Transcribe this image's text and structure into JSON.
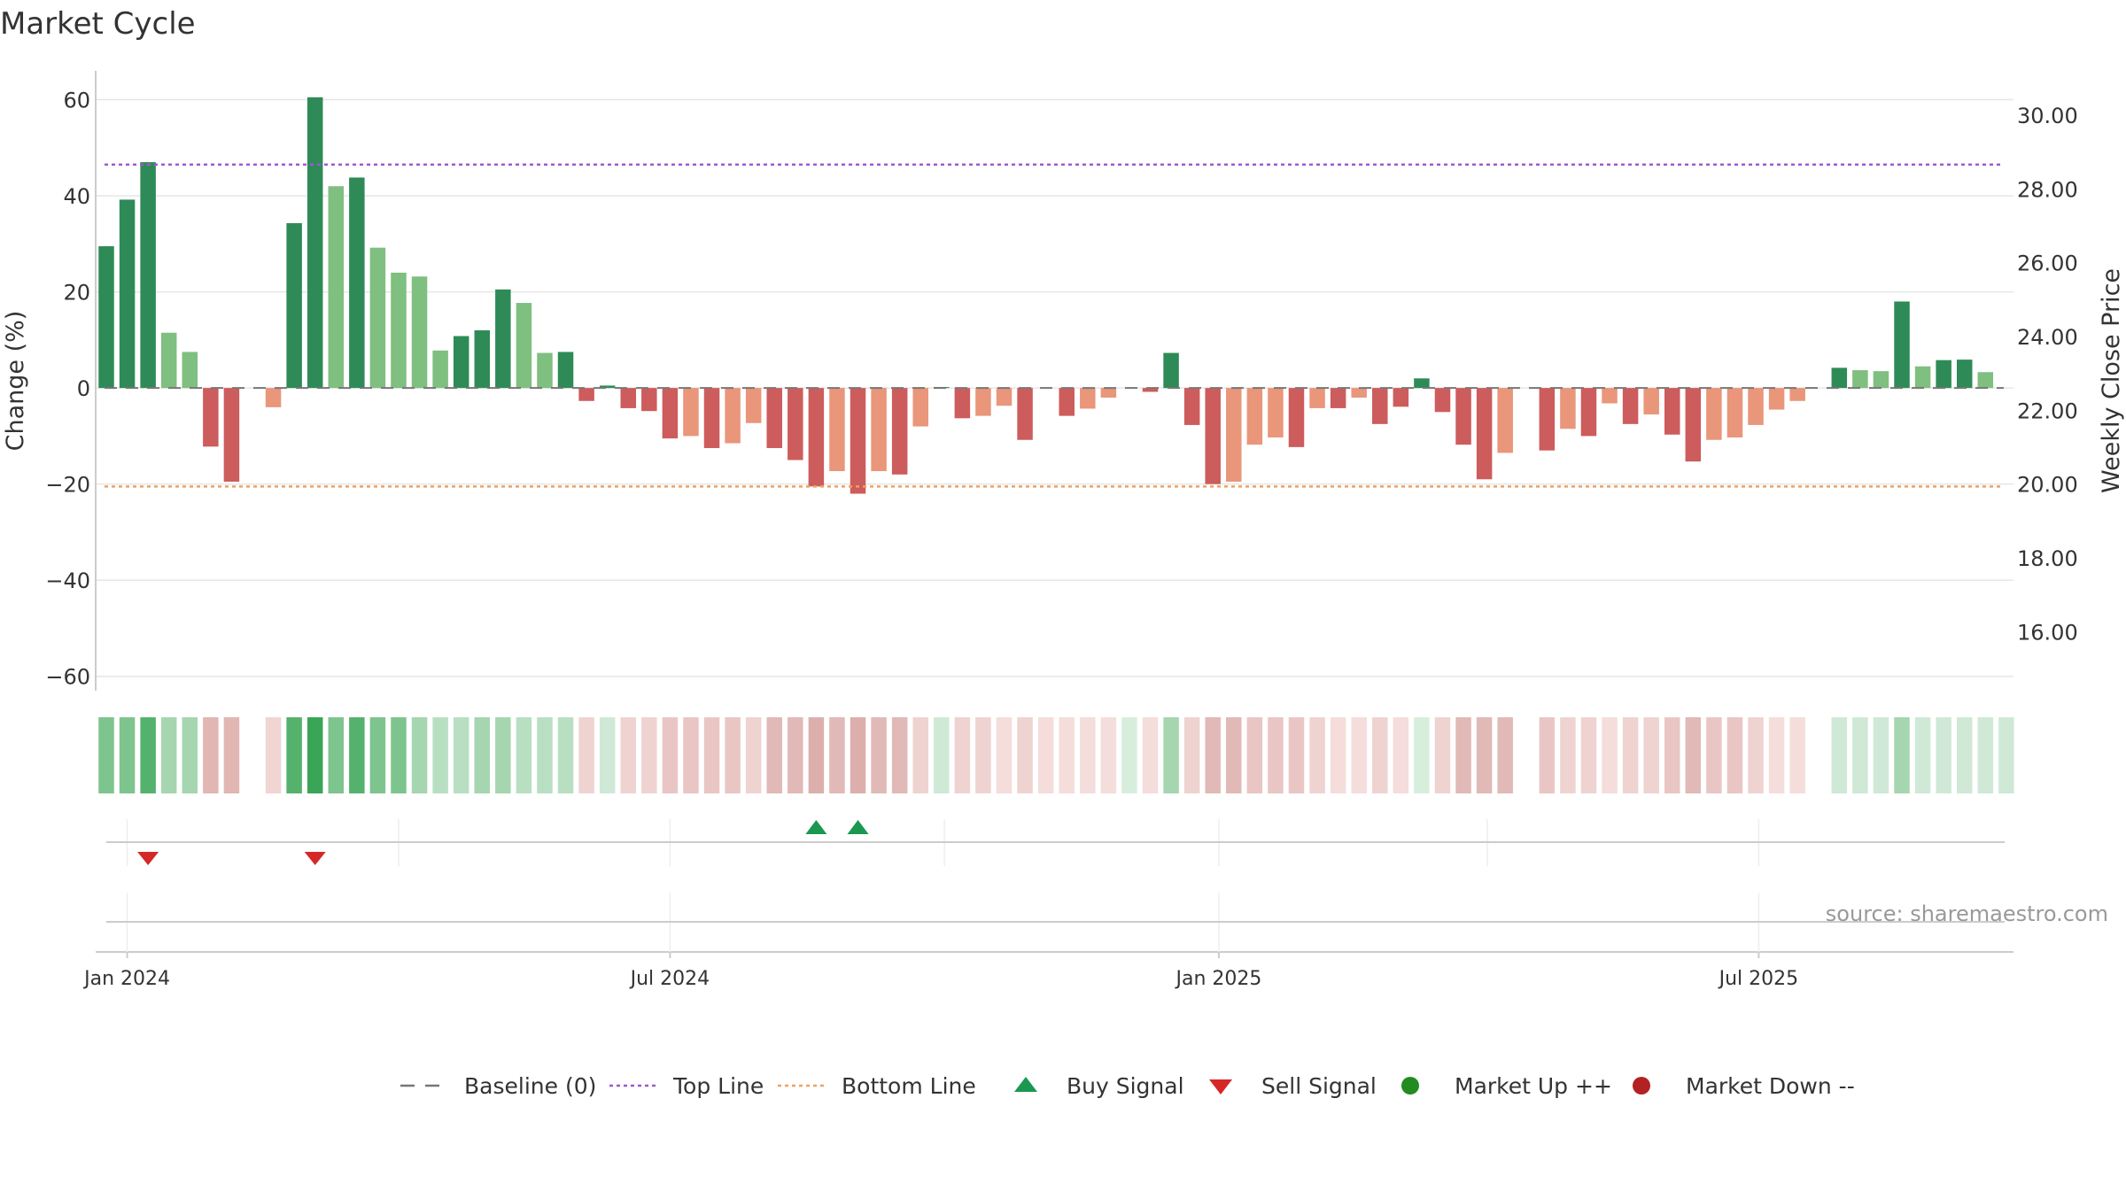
{
  "chart_data": {
    "type": "bar",
    "title": "Market Cycle",
    "ylabel": "Change (%)",
    "y2label": "Weekly Close Price",
    "ylim": [
      -63,
      66
    ],
    "y2lim": [
      14.4,
      31.2
    ],
    "yticks": [
      60,
      40,
      20,
      0,
      -20,
      -40,
      -60
    ],
    "ytick_labels": [
      "60",
      "40",
      "20",
      "0",
      "−20",
      "−40",
      "−60"
    ],
    "y2ticks": [
      30,
      28,
      26,
      24,
      22,
      20,
      18,
      16
    ],
    "y2tick_labels": [
      "30.00",
      "28.00",
      "26.00",
      "24.00",
      "22.00",
      "20.00",
      "18.00",
      "16.00"
    ],
    "top_line": 46.5,
    "bottom_line": -20.5,
    "xticks": [
      "2024-01-01",
      "2024-07-01",
      "2025-01-01",
      "2025-07-01"
    ],
    "xtick_labels": [
      "Jan 2024",
      "Jul 2024",
      "Jan 2025",
      "Jul 2025"
    ],
    "start_date": "2023-12-25",
    "dates": [
      "2023-12-25",
      "2024-01-01",
      "2024-01-08",
      "2024-01-15",
      "2024-01-22",
      "2024-01-29",
      "2024-02-05",
      "2024-02-12",
      "2024-02-19",
      "2024-02-26",
      "2024-03-04",
      "2024-03-11",
      "2024-03-18",
      "2024-03-25",
      "2024-04-01",
      "2024-04-08",
      "2024-04-15",
      "2024-04-22",
      "2024-04-29",
      "2024-05-06",
      "2024-05-13",
      "2024-05-20",
      "2024-05-27",
      "2024-06-03",
      "2024-06-10",
      "2024-06-17",
      "2024-06-24",
      "2024-07-01",
      "2024-07-08",
      "2024-07-15",
      "2024-07-22",
      "2024-07-29",
      "2024-08-05",
      "2024-08-12",
      "2024-08-19",
      "2024-08-26",
      "2024-09-02",
      "2024-09-09",
      "2024-09-16",
      "2024-09-23",
      "2024-09-30",
      "2024-10-07",
      "2024-10-14",
      "2024-10-21",
      "2024-10-28",
      "2024-11-04",
      "2024-11-11",
      "2024-11-18",
      "2024-11-25",
      "2024-12-02",
      "2024-12-09",
      "2024-12-16",
      "2024-12-23",
      "2024-12-30",
      "2025-01-06",
      "2025-01-13",
      "2025-01-20",
      "2025-01-27",
      "2025-02-03",
      "2025-02-10",
      "2025-02-17",
      "2025-02-24",
      "2025-03-03",
      "2025-03-10",
      "2025-03-17",
      "2025-03-24",
      "2025-03-31",
      "2025-04-07",
      "2025-04-14",
      "2025-04-21",
      "2025-04-28",
      "2025-05-05",
      "2025-05-12",
      "2025-05-19",
      "2025-05-26",
      "2025-06-02",
      "2025-06-09",
      "2025-06-16",
      "2025-06-23",
      "2025-06-30",
      "2025-07-07",
      "2025-07-14",
      "2025-07-21",
      "2025-07-28",
      "2025-08-04",
      "2025-08-11",
      "2025-08-18",
      "2025-08-25",
      "2025-09-01",
      "2025-09-08",
      "2025-09-15",
      "2025-09-22"
    ],
    "values": [
      29.5,
      39.2,
      47.0,
      11.5,
      7.5,
      -12.2,
      -19.5,
      0.0,
      -4.0,
      34.3,
      60.5,
      42.0,
      43.8,
      29.2,
      24.0,
      23.2,
      7.8,
      10.8,
      12.0,
      20.5,
      17.7,
      7.3,
      7.5,
      -2.7,
      0.5,
      -4.2,
      -4.8,
      -10.5,
      -10.0,
      -12.5,
      -11.5,
      -7.3,
      -12.5,
      -15.0,
      -20.5,
      -17.3,
      -22.0,
      -17.3,
      -18.0,
      -8.0,
      0.2,
      -6.3,
      -5.8,
      -3.7,
      -10.8,
      0.0,
      -5.8,
      -4.3,
      -2.0,
      0.0,
      -0.8,
      7.3,
      -7.7,
      -20.0,
      -19.5,
      -11.8,
      -10.3,
      -12.3,
      -4.2,
      -4.2,
      -2.0,
      -7.5,
      -3.9,
      2.0,
      -5.0,
      -11.8,
      -19.0,
      -13.5,
      0.0,
      -13.0,
      -8.5,
      -10.0,
      -3.2,
      -7.5,
      -5.5,
      -9.7,
      -15.3,
      -10.8,
      -10.3,
      -7.7,
      -4.5,
      -2.7,
      0.0,
      4.2,
      3.7,
      3.5,
      18.0,
      4.5,
      5.8,
      5.9,
      3.3,
      0.0
    ],
    "bar_colors": [
      "#2e8b57",
      "#2e8b57",
      "#2e8b57",
      "#7fbf7f",
      "#7fbf7f",
      "#cd5c5c",
      "#cd5c5c",
      "#cd5c5c",
      "#e9967a",
      "#2e8b57",
      "#2e8b57",
      "#7fbf7f",
      "#2e8b57",
      "#7fbf7f",
      "#7fbf7f",
      "#7fbf7f",
      "#7fbf7f",
      "#2e8b57",
      "#2e8b57",
      "#2e8b57",
      "#7fbf7f",
      "#7fbf7f",
      "#2e8b57",
      "#cd5c5c",
      "#2e8b57",
      "#cd5c5c",
      "#cd5c5c",
      "#cd5c5c",
      "#e9967a",
      "#cd5c5c",
      "#e9967a",
      "#e9967a",
      "#cd5c5c",
      "#cd5c5c",
      "#cd5c5c",
      "#e9967a",
      "#cd5c5c",
      "#e9967a",
      "#cd5c5c",
      "#e9967a",
      "#2e8b57",
      "#cd5c5c",
      "#e9967a",
      "#e9967a",
      "#cd5c5c",
      "#cd5c5c",
      "#cd5c5c",
      "#e9967a",
      "#e9967a",
      "#cd5c5c",
      "#cd5c5c",
      "#2e8b57",
      "#cd5c5c",
      "#cd5c5c",
      "#e9967a",
      "#e9967a",
      "#e9967a",
      "#cd5c5c",
      "#e9967a",
      "#cd5c5c",
      "#e9967a",
      "#cd5c5c",
      "#cd5c5c",
      "#2e8b57",
      "#cd5c5c",
      "#cd5c5c",
      "#cd5c5c",
      "#e9967a",
      "#cd5c5c",
      "#cd5c5c",
      "#e9967a",
      "#cd5c5c",
      "#e9967a",
      "#cd5c5c",
      "#e9967a",
      "#cd5c5c",
      "#cd5c5c",
      "#e9967a",
      "#e9967a",
      "#e9967a",
      "#e9967a",
      "#e9967a",
      "#cd5c5c",
      "#2e8b57",
      "#7fbf7f",
      "#7fbf7f",
      "#2e8b57",
      "#7fbf7f",
      "#2e8b57",
      "#2e8b57",
      "#7fbf7f",
      "#7fbf7f"
    ],
    "heat_colors": [
      "#7ec48e",
      "#7ec48e",
      "#55b26d",
      "#a5d6b0",
      "#a5d6b0",
      "#e1b6b3",
      "#e1b6b3",
      "#ffffff",
      "#f0d5d3",
      "#55b26d",
      "#3aa557",
      "#7ec48e",
      "#55b26d",
      "#7ec48e",
      "#7ec48e",
      "#a5d6b0",
      "#b9dfc3",
      "#b9dfc3",
      "#a5d6b0",
      "#a5d6b0",
      "#b9dfc3",
      "#b9dfc3",
      "#b9dfc3",
      "#efd3d1",
      "#cfe9d6",
      "#efd3d1",
      "#efd3d1",
      "#e9c6c4",
      "#e9c6c4",
      "#e9c6c4",
      "#e9c6c4",
      "#efd3d1",
      "#e1b9b6",
      "#e1b9b6",
      "#dcafac",
      "#e1b9b6",
      "#dcafac",
      "#e1b9b6",
      "#e1b9b6",
      "#efd3d1",
      "#cfe9d6",
      "#efd3d1",
      "#efd3d1",
      "#f4dddb",
      "#efd3d1",
      "#f4dddb",
      "#f4dddb",
      "#f4dddb",
      "#f4dddb",
      "#d8eedd",
      "#f4dddb",
      "#a5d6b0",
      "#efd3d1",
      "#e1b9b6",
      "#e1b9b6",
      "#e9c6c4",
      "#e9c6c4",
      "#e9c6c4",
      "#efd3d1",
      "#f4dddb",
      "#f4dddb",
      "#efd3d1",
      "#f4dddb",
      "#d8eedd",
      "#efd3d1",
      "#e1b9b6",
      "#e1b9b6",
      "#e1b9b6",
      "#ffffff",
      "#e9c6c4",
      "#efd3d1",
      "#efd3d1",
      "#f4dddb",
      "#efd3d1",
      "#efd3d1",
      "#e9c6c4",
      "#e1b9b6",
      "#e9c6c4",
      "#e9c6c4",
      "#efd3d1",
      "#f4dddb",
      "#f4dddb",
      "#ffffff",
      "#cfe9d6",
      "#cfe9d6",
      "#cfe9d6",
      "#a5d6b0",
      "#cfe9d6",
      "#cfe9d6",
      "#cfe9d6",
      "#cfe9d6",
      "#cfe9d6"
    ],
    "buy_signals": [
      "2024-08-19",
      "2024-09-02"
    ],
    "sell_signals": [
      "2024-01-08",
      "2024-03-04"
    ],
    "source_label": "source: sharemaestro.com",
    "legend": [
      {
        "label": "Baseline (0)",
        "marker": "dash-line",
        "color": "#777777"
      },
      {
        "label": "Top Line",
        "marker": "dotted-line",
        "color": "#9b59d0"
      },
      {
        "label": "Bottom Line",
        "marker": "dotted-line",
        "color": "#f0a060"
      },
      {
        "label": "Buy Signal",
        "marker": "triangle-up",
        "color": "#1a9850"
      },
      {
        "label": "Sell Signal",
        "marker": "triangle-down",
        "color": "#d62728"
      },
      {
        "label": "Market Up ++",
        "marker": "circle",
        "color": "#228b22"
      },
      {
        "label": "Market Down --",
        "marker": "circle",
        "color": "#b22222"
      }
    ],
    "grid": true,
    "legend_position": "bottom-center"
  }
}
